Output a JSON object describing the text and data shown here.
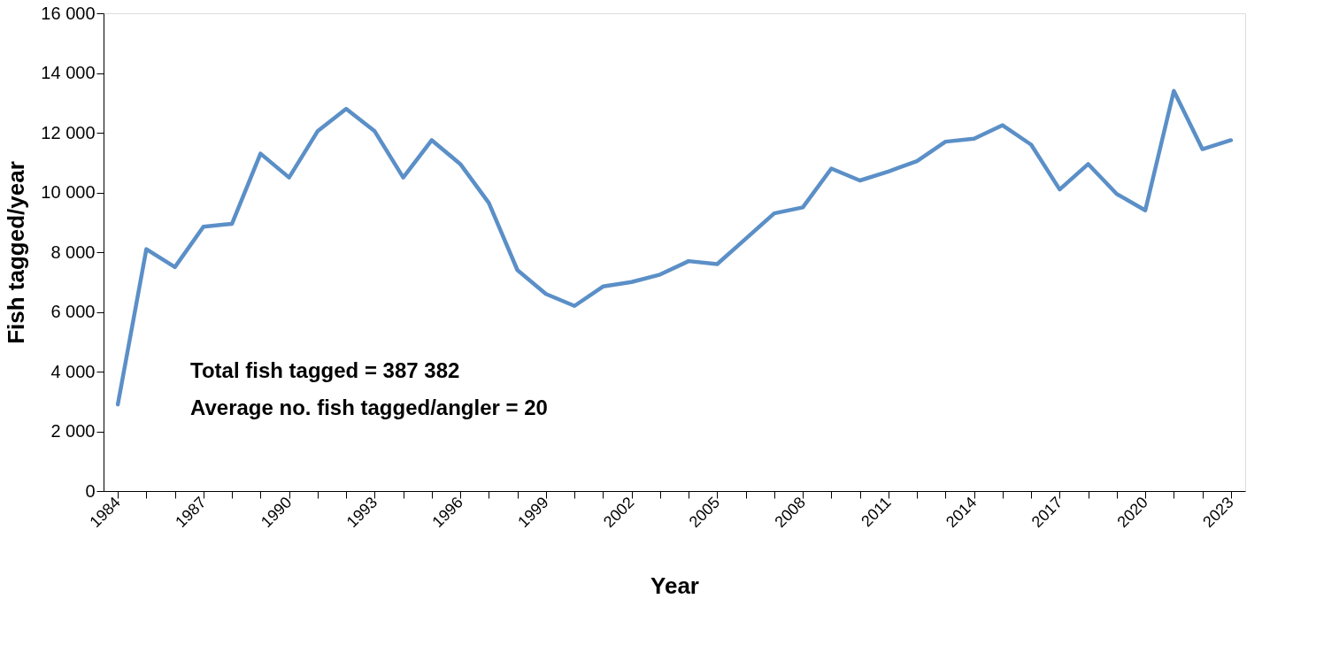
{
  "chart_data": {
    "type": "line",
    "xlabel": "Year",
    "ylabel": "Fish tagged/year",
    "categories": [
      "1984",
      null,
      null,
      "1987",
      null,
      null,
      "1990",
      null,
      null,
      "1993",
      null,
      null,
      "1996",
      null,
      null,
      "1999",
      null,
      null,
      "2002",
      null,
      null,
      "2005",
      null,
      null,
      "2008",
      null,
      null,
      "2011",
      null,
      null,
      "2014",
      null,
      null,
      "2017",
      null,
      null,
      "2020",
      null,
      null,
      "2023"
    ],
    "series": [
      {
        "color": "#5b8fc7",
        "values": [
          2900,
          8100,
          7500,
          8850,
          8950,
          11300,
          10500,
          12050,
          12800,
          12050,
          10500,
          11750,
          10950,
          9650,
          7400,
          6600,
          6200,
          6850,
          7000,
          7250,
          7700,
          7600,
          8450,
          9300,
          9500,
          10800,
          10400,
          10700,
          11050,
          11700,
          11800,
          12250,
          11600,
          10100,
          10950,
          9950,
          9400,
          13400,
          11450,
          11750
        ]
      }
    ],
    "ylim": [
      0,
      16000
    ],
    "yticks": [
      0,
      {
        "value": 2000,
        "label": "2 000"
      },
      {
        "value": 4000,
        "label": "4 000"
      },
      {
        "value": 6000,
        "label": "6 000"
      },
      {
        "value": 8000,
        "label": "8 000"
      },
      {
        "value": 10000,
        "label": "10 000"
      },
      {
        "value": 12000,
        "label": "12 000"
      },
      {
        "value": 14000,
        "label": "14 000"
      },
      {
        "value": 16000,
        "label": "16 000"
      }
    ],
    "grid": false,
    "legend": false,
    "marker": "none",
    "line_style": "solid",
    "annotations": [
      "Total fish tagged = 387 382",
      "Average no. fish tagged/angler = 20"
    ]
  }
}
